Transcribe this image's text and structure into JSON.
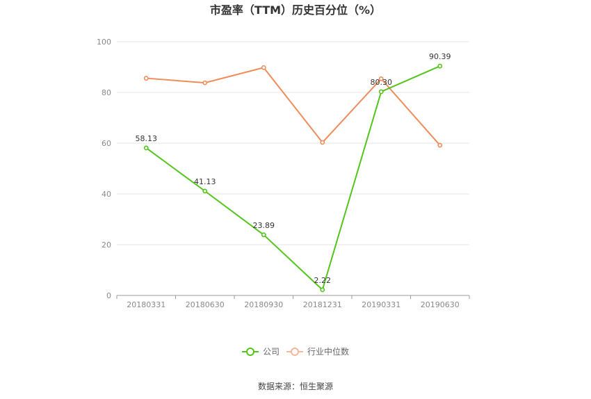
{
  "chart_data": {
    "type": "line",
    "title": "市盈率（TTM）历史百分位（%）",
    "categories": [
      "20180331",
      "20180630",
      "20180930",
      "20181231",
      "20190331",
      "20190630"
    ],
    "ylim": [
      0,
      100
    ],
    "yticks": [
      "0",
      "20",
      "40",
      "60",
      "80",
      "100"
    ],
    "grid": true,
    "legend_position": "bottom",
    "series": [
      {
        "name": "公司",
        "color": "#52c41a",
        "values": [
          58.13,
          41.13,
          23.89,
          2.22,
          80.3,
          90.39
        ],
        "labels": [
          "58.13",
          "41.13",
          "23.89",
          "2.22",
          "80.30",
          "90.39"
        ]
      },
      {
        "name": "行业中位数",
        "color": "#f08c5a",
        "values": [
          85.6,
          83.8,
          89.8,
          60.3,
          85.4,
          59.2
        ]
      }
    ]
  },
  "source": "数据来源：恒生聚源"
}
